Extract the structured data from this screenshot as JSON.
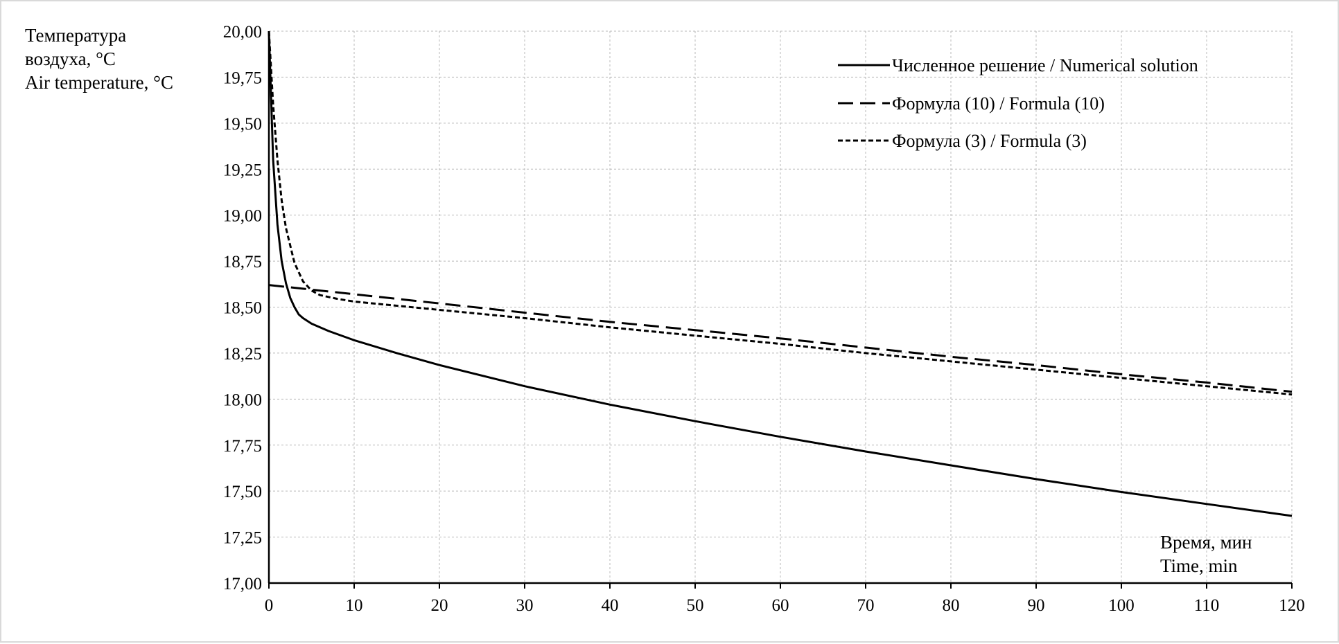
{
  "chart_data": {
    "type": "line",
    "ylabel_lines": [
      "Температура",
      "воздуха, °C",
      "Air temperature, °C"
    ],
    "xlabel_lines": [
      "Время, мин",
      "Time, min"
    ],
    "xlim": [
      0,
      120
    ],
    "ylim": [
      17.0,
      20.0
    ],
    "xticks": [
      "0",
      "10",
      "20",
      "30",
      "40",
      "50",
      "60",
      "70",
      "80",
      "90",
      "100",
      "110",
      "120"
    ],
    "yticks": [
      "17,00",
      "17,25",
      "17,50",
      "17,75",
      "18,00",
      "18,25",
      "18,50",
      "18,75",
      "19,00",
      "19,25",
      "19,50",
      "19,75",
      "20,00"
    ],
    "grid": true,
    "legend_position": "top-right",
    "series": [
      {
        "name": "Численное решение / Numerical solution",
        "style": "solid",
        "x": [
          0,
          0.5,
          1,
          1.5,
          2,
          2.5,
          3,
          3.5,
          4,
          5,
          7,
          10,
          15,
          20,
          30,
          40,
          50,
          60,
          70,
          80,
          90,
          100,
          110,
          120
        ],
        "y": [
          20.0,
          19.3,
          18.95,
          18.75,
          18.63,
          18.55,
          18.5,
          18.46,
          18.44,
          18.41,
          18.37,
          18.32,
          18.25,
          18.185,
          18.07,
          17.97,
          17.88,
          17.795,
          17.715,
          17.64,
          17.565,
          17.495,
          17.43,
          17.365
        ]
      },
      {
        "name": "Формула (10) / Formula (10)",
        "style": "dashed",
        "x": [
          0,
          10,
          20,
          30,
          40,
          50,
          60,
          70,
          80,
          90,
          100,
          110,
          120
        ],
        "y": [
          18.62,
          18.57,
          18.52,
          18.47,
          18.42,
          18.375,
          18.33,
          18.28,
          18.23,
          18.185,
          18.135,
          18.09,
          18.04
        ]
      },
      {
        "name": "Формула (3) / Formula (3)",
        "style": "dotted",
        "x": [
          0,
          0.5,
          1,
          1.5,
          2,
          3,
          4,
          5,
          6,
          8,
          10,
          20,
          30,
          40,
          50,
          60,
          70,
          80,
          90,
          100,
          110,
          120
        ],
        "y": [
          20.0,
          19.6,
          19.3,
          19.08,
          18.93,
          18.74,
          18.64,
          18.59,
          18.565,
          18.545,
          18.53,
          18.485,
          18.44,
          18.39,
          18.345,
          18.3,
          18.25,
          18.205,
          18.16,
          18.115,
          18.07,
          18.025
        ]
      }
    ]
  }
}
